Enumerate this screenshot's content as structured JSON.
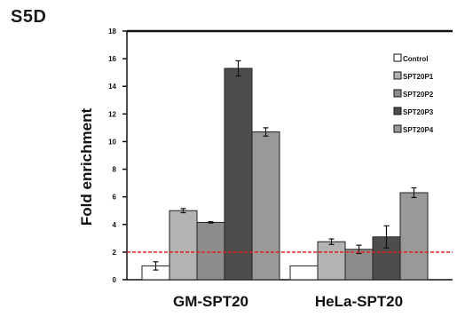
{
  "panel_label": "S5D",
  "chart_data": {
    "type": "bar",
    "title": "",
    "ylabel": "Fold enrichment",
    "xlabel": "",
    "ylim": [
      0,
      18
    ],
    "yticks": [
      0,
      2,
      4,
      6,
      8,
      10,
      12,
      14,
      16,
      18
    ],
    "categories": [
      "GM-SPT20",
      "HeLa-SPT20"
    ],
    "series": [
      {
        "name": "Control",
        "color": "#ffffff",
        "values": [
          1.0,
          1.0
        ],
        "errors": [
          0.3,
          0.0
        ]
      },
      {
        "name": "SPT20P1",
        "color": "#b3b3b3",
        "values": [
          5.0,
          2.75
        ],
        "errors": [
          0.15,
          0.2
        ]
      },
      {
        "name": "SPT20P2",
        "color": "#8c8c8c",
        "values": [
          4.15,
          2.2
        ],
        "errors": [
          0.05,
          0.3
        ]
      },
      {
        "name": "SPT20P3",
        "color": "#4d4d4d",
        "values": [
          15.3,
          3.1
        ],
        "errors": [
          0.55,
          0.8
        ]
      },
      {
        "name": "SPT20P4",
        "color": "#999999",
        "values": [
          10.7,
          6.3
        ],
        "errors": [
          0.3,
          0.35
        ]
      }
    ],
    "reference_line": {
      "y": 2,
      "color": "#e02020",
      "style": "dashed"
    },
    "legend": {
      "position": "top-right"
    },
    "grid": false
  }
}
